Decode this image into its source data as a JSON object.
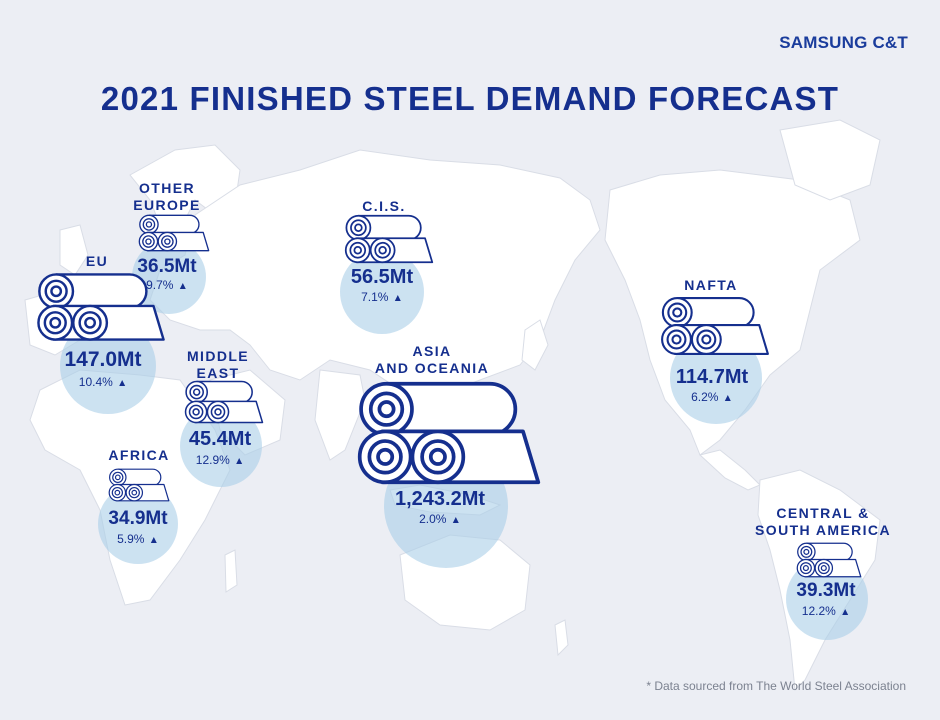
{
  "brand": "SAMSUNG C&T",
  "title": "2021 FINISHED STEEL DEMAND FORECAST",
  "colors": {
    "primary": "#152f8e",
    "circle": "#aacee8",
    "land": "#ffffff",
    "background": "#eceef4"
  },
  "icon": "steel-coil-icon",
  "regions": {
    "other_europe": {
      "name": "OTHER\nEUROPE",
      "value": "36.5Mt",
      "change": "9.7%"
    },
    "eu": {
      "name": "EU",
      "value": "147.0Mt",
      "change": "10.4%"
    },
    "cis": {
      "name": "C.I.S.",
      "value": "56.5Mt",
      "change": "7.1%"
    },
    "middle_east": {
      "name": "MIDDLE\nEAST",
      "value": "45.4Mt",
      "change": "12.9%"
    },
    "africa": {
      "name": "AFRICA",
      "value": "34.9Mt",
      "change": "5.9%"
    },
    "asia_oceania": {
      "name": "ASIA\nAND OCEANIA",
      "value": "1,243.2Mt",
      "change": "2.0%"
    },
    "nafta": {
      "name": "NAFTA",
      "value": "114.7Mt",
      "change": "6.2%"
    },
    "csa": {
      "name": "CENTRAL &\nSOUTH AMERICA",
      "value": "39.3Mt",
      "change": "12.2%"
    }
  },
  "trend_symbol": "▲",
  "footnote": "* Data sourced from The World Steel Association"
}
